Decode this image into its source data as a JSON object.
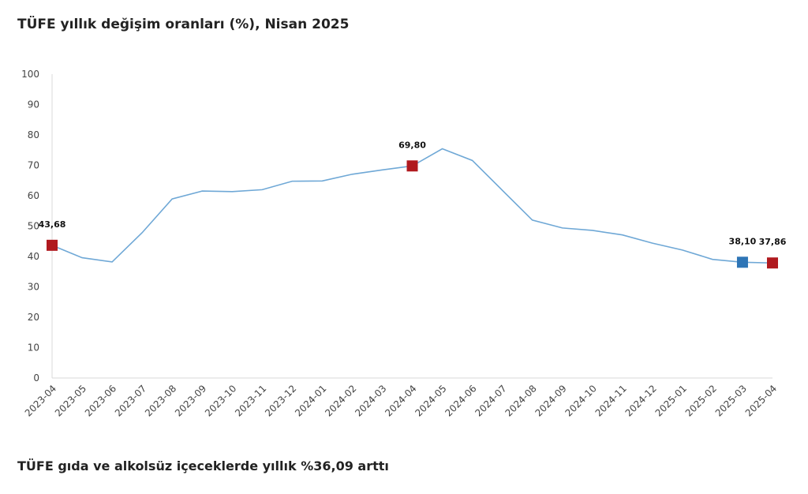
{
  "title": "TÜFE yıllık değişim oranları (%), Nisan 2025",
  "footer_text": "TÜFE gıda ve alkolsüz içeceklerde yıllık %36,09 arttı",
  "chart_data": {
    "type": "line",
    "title": "TÜFE yıllık değişim oranları (%), Nisan 2025",
    "categories": [
      "2023-04",
      "2023-05",
      "2023-06",
      "2023-07",
      "2023-08",
      "2023-09",
      "2023-10",
      "2023-11",
      "2023-12",
      "2024-01",
      "2024-02",
      "2024-03",
      "2024-04",
      "2024-05",
      "2024-06",
      "2024-07",
      "2024-08",
      "2024-09",
      "2024-10",
      "2024-11",
      "2024-12",
      "2025-01",
      "2025-02",
      "2025-03",
      "2025-04"
    ],
    "values": [
      43.68,
      39.59,
      38.21,
      47.83,
      58.94,
      61.53,
      61.36,
      61.98,
      64.77,
      64.86,
      67.07,
      68.5,
      69.8,
      75.45,
      71.6,
      61.78,
      51.97,
      49.38,
      48.58,
      47.09,
      44.38,
      42.12,
      39.05,
      38.1,
      37.86
    ],
    "ylim": [
      0,
      100
    ],
    "yticks": [
      0,
      10,
      20,
      30,
      40,
      50,
      60,
      70,
      80,
      90,
      100
    ],
    "grid": false,
    "line_color": "#6fa8d6",
    "highlighted_points": [
      {
        "category": "2023-04",
        "label": "43,68",
        "color": "#b0191e"
      },
      {
        "category": "2024-04",
        "label": "69,80",
        "color": "#b0191e"
      },
      {
        "category": "2025-03",
        "label": "38,10",
        "color": "#2e75b6"
      },
      {
        "category": "2025-04",
        "label": "37,86",
        "color": "#b0191e"
      }
    ]
  }
}
